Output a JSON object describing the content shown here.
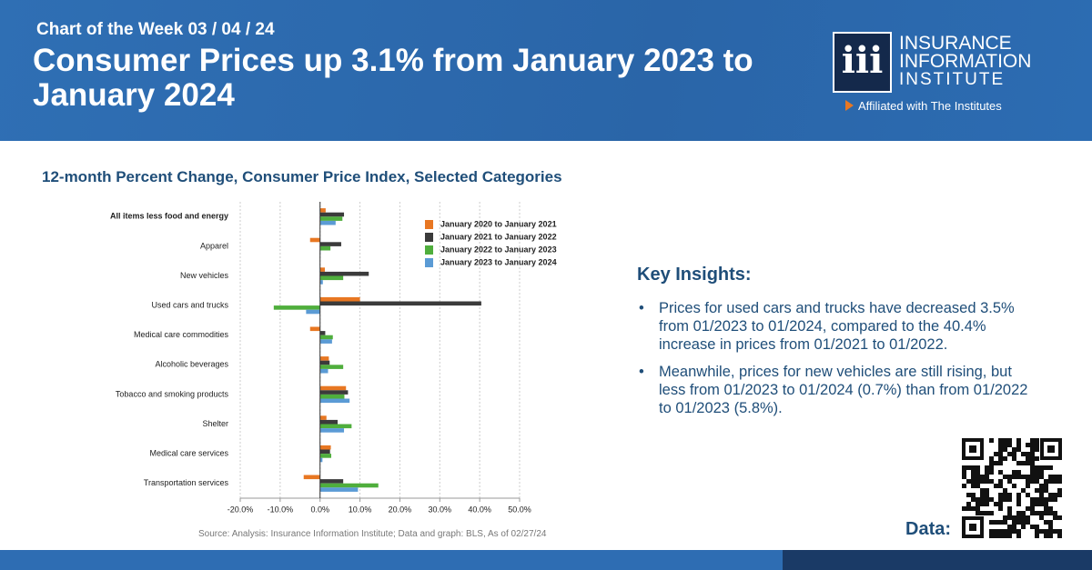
{
  "header": {
    "kicker": "Chart of the Week 03 / 04 / 24",
    "title": "Consumer Prices up 3.1% from January 2023 to January 2024"
  },
  "logo": {
    "lines": [
      "INSURANCE",
      "INFORMATION",
      "INSTITUTE"
    ],
    "affiliation": "Affiliated with The Institutes"
  },
  "chart_data": {
    "type": "hbar",
    "title": "12-month Percent Change, Consumer Price Index, Selected Categories",
    "categories": [
      "All items less food and energy",
      "Apparel",
      "New vehicles",
      "Used cars and trucks",
      "Medical care commodities",
      "Alcoholic beverages",
      "Tobacco and smoking products",
      "Shelter",
      "Medical care services",
      "Transportation services"
    ],
    "series": [
      {
        "name": "January 2020 to January 2021",
        "color": "#e87722",
        "values": [
          1.4,
          -2.5,
          1.2,
          10.0,
          -2.5,
          2.2,
          6.5,
          1.6,
          2.7,
          -4.1
        ]
      },
      {
        "name": "January 2021 to January 2022",
        "color": "#3b3b3b",
        "values": [
          6.0,
          5.3,
          12.2,
          40.4,
          1.3,
          2.4,
          7.0,
          4.4,
          2.5,
          5.8
        ]
      },
      {
        "name": "January 2022 to January 2023",
        "color": "#4fae3c",
        "values": [
          5.6,
          2.6,
          5.8,
          -11.6,
          3.2,
          5.8,
          6.1,
          7.9,
          2.8,
          14.6
        ]
      },
      {
        "name": "January 2023 to January 2024",
        "color": "#5b9bd5",
        "values": [
          3.9,
          0.1,
          0.7,
          -3.5,
          3.0,
          2.0,
          7.4,
          6.0,
          0.6,
          9.5
        ]
      }
    ],
    "xlim": [
      -20,
      50
    ],
    "xticks": [
      {
        "value": -20,
        "label": "-20.0%"
      },
      {
        "value": -10,
        "label": "-10.0%"
      },
      {
        "value": 0,
        "label": "0.0%"
      },
      {
        "value": 10,
        "label": "10.0%"
      },
      {
        "value": 20,
        "label": "20.0%"
      },
      {
        "value": 30,
        "label": "30.0%"
      },
      {
        "value": 40,
        "label": "40.0%"
      },
      {
        "value": 50,
        "label": "50.0%"
      }
    ],
    "grid": true,
    "source": "Source: Analysis: Insurance Information Institute; Data and graph: BLS, As of 02/27/24"
  },
  "insights": {
    "heading": "Key Insights:",
    "items": [
      "Prices for used cars and trucks have decreased 3.5% from 01/2023 to 01/2024, compared to the 40.4% increase in prices from 01/2021 to 01/2022.",
      "Meanwhile, prices for new vehicles are still rising, but less from 01/2023 to 01/2024 (0.7%) than from 01/2022 to 01/2023 (5.8%)."
    ]
  },
  "data_label": "Data:"
}
